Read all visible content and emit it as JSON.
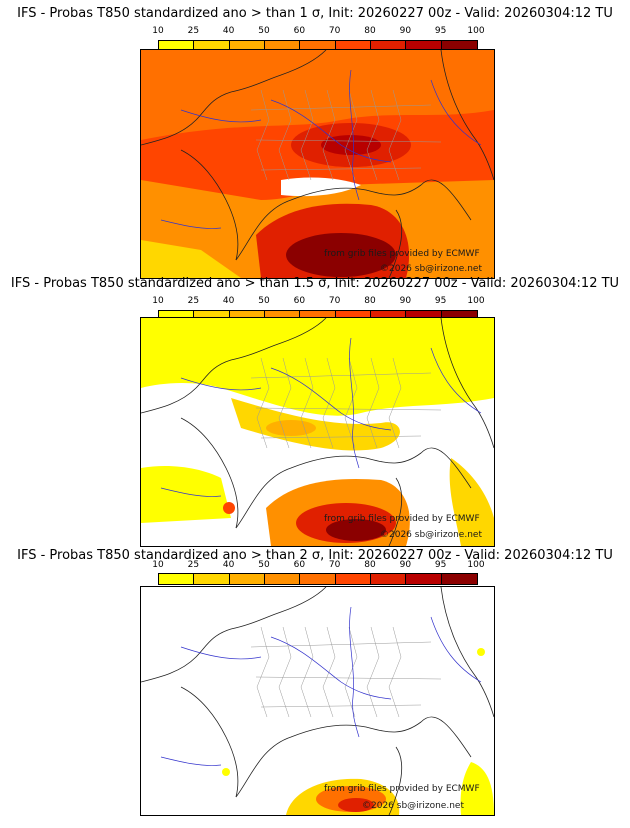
{
  "panels": [
    {
      "title": "IFS - Probas T850  standardized ano > than 1 σ, Init: 20260227 00z - Valid: 20260304:12 TU",
      "threshold": "1 σ",
      "coverage": "high"
    },
    {
      "title": "IFS - Probas T850  standardized ano > than 1.5 σ, Init: 20260227 00z - Valid: 20260304:12 TU",
      "threshold": "1.5 σ",
      "coverage": "medium"
    },
    {
      "title": "IFS - Probas T850  standardized ano > than 2 σ, Init: 20260227 00z - Valid: 20260304:12 TU",
      "threshold": "2 σ",
      "coverage": "low"
    }
  ],
  "colorbar": {
    "ticks": [
      "10",
      "25",
      "40",
      "50",
      "60",
      "70",
      "80",
      "90",
      "95",
      "100"
    ],
    "colors": [
      "#ffff00",
      "#ffd700",
      "#ffb000",
      "#ff9000",
      "#ff7000",
      "#ff4500",
      "#e02000",
      "#b80000",
      "#8b0000"
    ]
  },
  "credits": {
    "data_source": "from grib files provided by ECMWF",
    "copyright": "©2026 sb@irizone.net"
  },
  "map_colors": {
    "sea_line": "#3333cc",
    "land_line": "#222222",
    "admin_line": "#999999"
  }
}
